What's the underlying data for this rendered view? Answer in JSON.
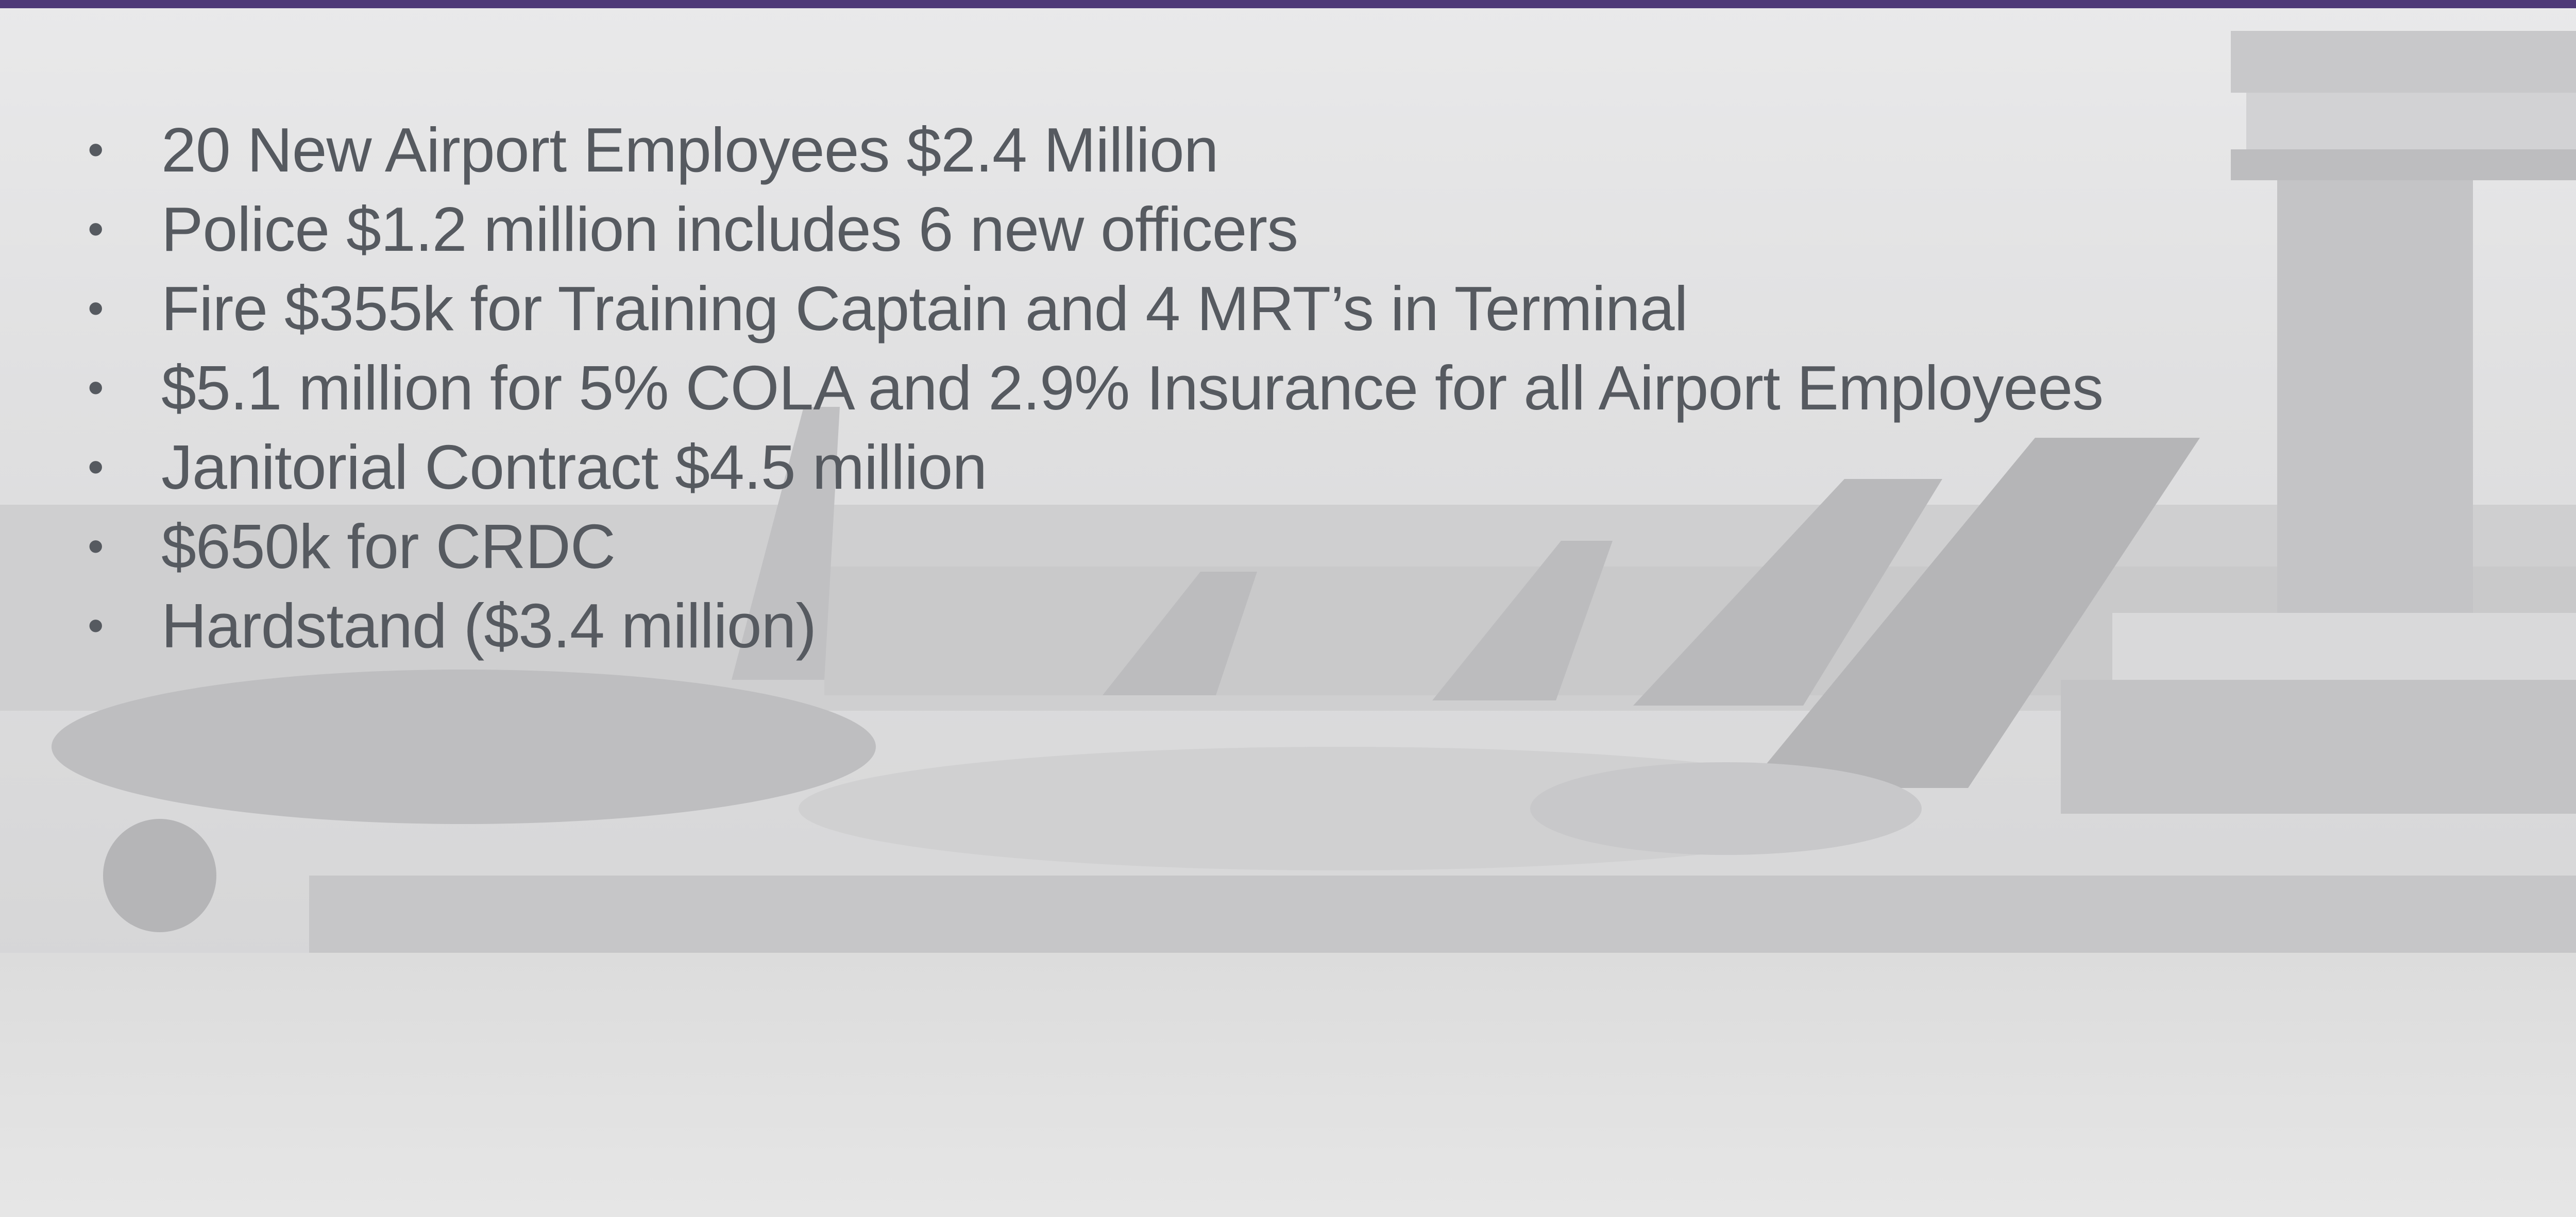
{
  "bullets": [
    "20 New Airport Employees $2.4 Million",
    "Police $1.2 million includes 6 new officers",
    "Fire $355k for Training Captain and 4 MRT’s in Terminal",
    "$5.1 million for 5% COLA and 2.9% Insurance for all Airport Employees",
    "Janitorial Contract $4.5 million",
    "$650k for CRDC",
    "Hardstand ($3.4 million)"
  ]
}
